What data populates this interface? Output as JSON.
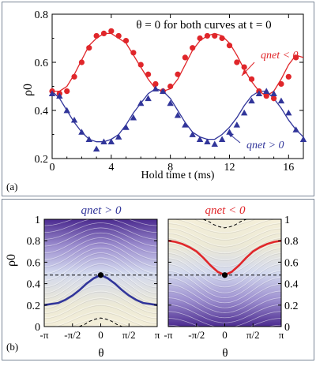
{
  "chart_data": [
    {
      "panel": "(a)",
      "type": "scatter",
      "annotation": "θ = 0 for both curves at t = 0",
      "xlabel": "Hold time t (ms)",
      "ylabel": "ρ0",
      "xlim": [
        0,
        17
      ],
      "ylim": [
        0.2,
        0.8
      ],
      "xticks": [
        "0",
        "4",
        "8",
        "12",
        "16"
      ],
      "yticks": [
        "0.2",
        "0.4",
        "0.6",
        "0.8"
      ],
      "grid": false,
      "series": [
        {
          "name": "qnet < 0",
          "color": "#e0262a",
          "marker": "circle",
          "x": [
            0,
            0.5,
            1.0,
            1.5,
            2.0,
            2.5,
            3.0,
            3.5,
            4.0,
            4.5,
            5.0,
            5.5,
            6.0,
            6.5,
            7.0,
            7.5,
            8.0,
            8.5,
            9.0,
            9.5,
            10.0,
            10.5,
            11.0,
            11.5,
            12.0,
            12.5,
            13.0,
            13.5,
            14.0,
            14.5,
            15.0,
            15.5,
            16.0,
            16.5
          ],
          "y": [
            0.48,
            0.47,
            0.48,
            0.54,
            0.6,
            0.66,
            0.71,
            0.72,
            0.73,
            0.71,
            0.69,
            0.64,
            0.59,
            0.55,
            0.51,
            0.48,
            0.5,
            0.55,
            0.62,
            0.66,
            0.7,
            0.71,
            0.71,
            0.7,
            0.67,
            0.6,
            0.58,
            0.53,
            0.48,
            0.46,
            0.45,
            0.51,
            0.54,
            0.62
          ]
        },
        {
          "name": "qnet > 0",
          "color": "#31359a",
          "marker": "triangle",
          "x": [
            0,
            0.5,
            1.0,
            1.5,
            2.0,
            2.5,
            3.0,
            3.5,
            4.0,
            4.5,
            5.0,
            5.5,
            6.0,
            6.5,
            7.0,
            7.5,
            8.0,
            8.5,
            9.0,
            9.5,
            10.0,
            10.5,
            11.0,
            11.5,
            12.0,
            12.5,
            13.0,
            13.5,
            14.0,
            14.5,
            15.0,
            15.5,
            16.0,
            16.5,
            17.0
          ],
          "y": [
            0.47,
            0.46,
            0.4,
            0.36,
            0.31,
            0.28,
            0.24,
            0.27,
            0.27,
            0.29,
            0.33,
            0.37,
            0.43,
            0.45,
            0.49,
            0.48,
            0.43,
            0.38,
            0.34,
            0.3,
            0.28,
            0.27,
            0.26,
            0.28,
            0.31,
            0.34,
            0.39,
            0.44,
            0.47,
            0.48,
            0.47,
            0.44,
            0.39,
            0.32,
            0.28
          ]
        }
      ],
      "fit_curves": {
        "qnet < 0": {
          "x": [
            0,
            0.5,
            1.0,
            1.5,
            2.0,
            2.5,
            3.0,
            3.5,
            4.0,
            4.5,
            5.0,
            5.5,
            6.0,
            6.5,
            7.0,
            7.5,
            8.0,
            8.5,
            9.0,
            9.5,
            10.0,
            10.5,
            11.0,
            11.5,
            12.0,
            12.5,
            13.0,
            13.5,
            14.0,
            14.5,
            15.0,
            15.5,
            16.0,
            16.5,
            17.0
          ],
          "y": [
            0.48,
            0.48,
            0.5,
            0.55,
            0.61,
            0.67,
            0.7,
            0.72,
            0.72,
            0.7,
            0.68,
            0.63,
            0.58,
            0.53,
            0.49,
            0.48,
            0.49,
            0.53,
            0.59,
            0.65,
            0.69,
            0.71,
            0.72,
            0.71,
            0.68,
            0.63,
            0.57,
            0.52,
            0.48,
            0.46,
            0.48,
            0.53,
            0.59,
            0.63,
            0.62
          ]
        },
        "qnet > 0": {
          "x": [
            0,
            0.5,
            1.0,
            1.5,
            2.0,
            2.5,
            3.0,
            3.5,
            4.0,
            4.5,
            5.0,
            5.5,
            6.0,
            6.5,
            7.0,
            7.5,
            8.0,
            8.5,
            9.0,
            9.5,
            10.0,
            10.5,
            11.0,
            11.5,
            12.0,
            12.5,
            13.0,
            13.5,
            14.0,
            14.5,
            15.0,
            15.5,
            16.0,
            16.5,
            17.0
          ],
          "y": [
            0.48,
            0.45,
            0.4,
            0.35,
            0.31,
            0.28,
            0.27,
            0.27,
            0.28,
            0.3,
            0.34,
            0.39,
            0.43,
            0.47,
            0.49,
            0.48,
            0.45,
            0.4,
            0.35,
            0.31,
            0.29,
            0.28,
            0.28,
            0.3,
            0.33,
            0.37,
            0.42,
            0.46,
            0.48,
            0.48,
            0.45,
            0.41,
            0.36,
            0.32,
            0.29
          ]
        }
      },
      "labels": {
        "qneg_label": "qnet < 0",
        "qpos_label": "qnet > 0"
      }
    },
    {
      "panel": "(b)",
      "type": "heatmap",
      "xlabel": "θ",
      "ylabel": "ρ0",
      "xlim": [
        -3.14159,
        3.14159
      ],
      "ylim": [
        0,
        1
      ],
      "xticks": [
        "-π",
        "-π/2",
        "0",
        "π/2",
        "π"
      ],
      "yticks": [
        "0",
        "0.2",
        "0.4",
        "0.6",
        "0.8",
        "1"
      ],
      "reference_line_y": 0.48,
      "marker_point": {
        "theta": 0,
        "rho0": 0.48
      },
      "subplots": [
        {
          "title": "qnet > 0",
          "title_color": "#31359a",
          "trajectory_color": "#31359a",
          "trajectory": {
            "theta": [
              -3.14,
              -2.75,
              -2.36,
              -1.96,
              -1.57,
              -1.18,
              -0.79,
              -0.39,
              0,
              0.39,
              0.79,
              1.18,
              1.57,
              1.96,
              2.36,
              2.75,
              3.14
            ],
            "rho0": [
              0.2,
              0.21,
              0.22,
              0.25,
              0.29,
              0.34,
              0.4,
              0.45,
              0.48,
              0.45,
              0.4,
              0.34,
              0.29,
              0.25,
              0.22,
              0.21,
              0.2
            ]
          },
          "separatrix": {
            "theta": [
              -1.2,
              -0.9,
              -0.6,
              -0.3,
              0,
              0.3,
              0.6,
              0.9,
              1.2
            ],
            "rho0": [
              0.0,
              0.02,
              0.05,
              0.07,
              0.08,
              0.07,
              0.05,
              0.02,
              0.0
            ]
          }
        },
        {
          "title": "qnet < 0",
          "title_color": "#e0262a",
          "trajectory_color": "#e0262a",
          "trajectory": {
            "theta": [
              -3.14,
              -2.75,
              -2.36,
              -1.96,
              -1.57,
              -1.18,
              -0.79,
              -0.39,
              0,
              0.39,
              0.79,
              1.18,
              1.57,
              1.96,
              2.36,
              2.75,
              3.14
            ],
            "rho0": [
              0.8,
              0.79,
              0.77,
              0.74,
              0.7,
              0.64,
              0.57,
              0.51,
              0.48,
              0.51,
              0.57,
              0.64,
              0.7,
              0.74,
              0.77,
              0.79,
              0.8
            ]
          },
          "separatrix": {
            "theta": [
              -1.2,
              -0.9,
              -0.6,
              -0.3,
              0,
              0.3,
              0.6,
              0.9,
              1.2
            ],
            "rho0": [
              1.0,
              0.98,
              0.95,
              0.93,
              0.92,
              0.93,
              0.95,
              0.98,
              1.0
            ]
          }
        }
      ]
    }
  ]
}
